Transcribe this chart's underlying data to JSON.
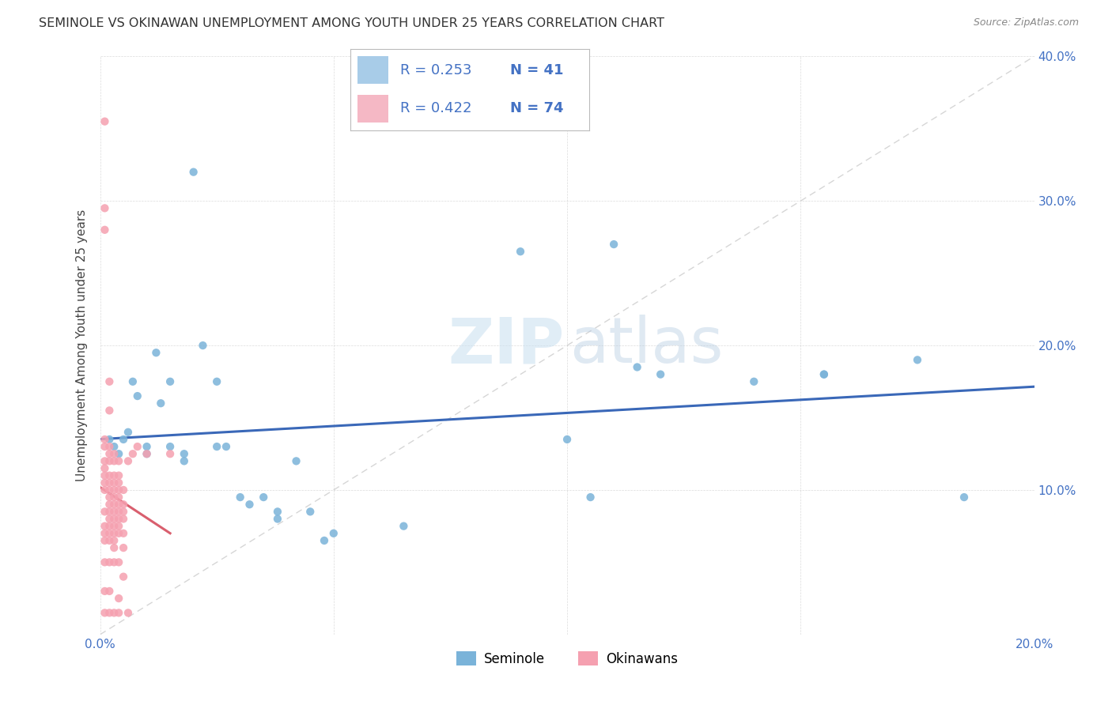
{
  "title": "SEMINOLE VS OKINAWAN UNEMPLOYMENT AMONG YOUTH UNDER 25 YEARS CORRELATION CHART",
  "source": "Source: ZipAtlas.com",
  "ylabel": "Unemployment Among Youth under 25 years",
  "xlim": [
    0.0,
    0.2
  ],
  "ylim": [
    0.0,
    0.4
  ],
  "seminole_color": "#7ab3d9",
  "okinawan_color": "#f5a0b0",
  "seminole_trend_color": "#3a68b8",
  "okinawan_trend_color": "#d95f6e",
  "diagonal_color": "#cccccc",
  "background_color": "#ffffff",
  "watermark_zip": "ZIP",
  "watermark_atlas": "atlas",
  "legend_box_sem_color": "#a8cce8",
  "legend_box_oki_color": "#f5b8c5",
  "seminole_data": [
    [
      0.002,
      0.135
    ],
    [
      0.003,
      0.13
    ],
    [
      0.004,
      0.125
    ],
    [
      0.005,
      0.135
    ],
    [
      0.006,
      0.14
    ],
    [
      0.007,
      0.175
    ],
    [
      0.008,
      0.165
    ],
    [
      0.01,
      0.13
    ],
    [
      0.01,
      0.125
    ],
    [
      0.012,
      0.195
    ],
    [
      0.013,
      0.16
    ],
    [
      0.015,
      0.175
    ],
    [
      0.015,
      0.13
    ],
    [
      0.018,
      0.12
    ],
    [
      0.018,
      0.125
    ],
    [
      0.02,
      0.32
    ],
    [
      0.022,
      0.2
    ],
    [
      0.025,
      0.13
    ],
    [
      0.025,
      0.175
    ],
    [
      0.027,
      0.13
    ],
    [
      0.03,
      0.095
    ],
    [
      0.032,
      0.09
    ],
    [
      0.035,
      0.095
    ],
    [
      0.038,
      0.085
    ],
    [
      0.038,
      0.08
    ],
    [
      0.042,
      0.12
    ],
    [
      0.045,
      0.085
    ],
    [
      0.048,
      0.065
    ],
    [
      0.05,
      0.07
    ],
    [
      0.065,
      0.075
    ],
    [
      0.09,
      0.265
    ],
    [
      0.1,
      0.135
    ],
    [
      0.105,
      0.095
    ],
    [
      0.11,
      0.27
    ],
    [
      0.115,
      0.185
    ],
    [
      0.12,
      0.18
    ],
    [
      0.14,
      0.175
    ],
    [
      0.155,
      0.18
    ],
    [
      0.155,
      0.18
    ],
    [
      0.175,
      0.19
    ],
    [
      0.185,
      0.095
    ]
  ],
  "okinawan_data": [
    [
      0.001,
      0.015
    ],
    [
      0.001,
      0.03
    ],
    [
      0.001,
      0.05
    ],
    [
      0.001,
      0.065
    ],
    [
      0.001,
      0.07
    ],
    [
      0.001,
      0.075
    ],
    [
      0.001,
      0.085
    ],
    [
      0.001,
      0.1
    ],
    [
      0.001,
      0.105
    ],
    [
      0.001,
      0.11
    ],
    [
      0.001,
      0.115
    ],
    [
      0.001,
      0.12
    ],
    [
      0.001,
      0.13
    ],
    [
      0.001,
      0.135
    ],
    [
      0.001,
      0.28
    ],
    [
      0.001,
      0.295
    ],
    [
      0.001,
      0.355
    ],
    [
      0.002,
      0.015
    ],
    [
      0.002,
      0.03
    ],
    [
      0.002,
      0.05
    ],
    [
      0.002,
      0.065
    ],
    [
      0.002,
      0.07
    ],
    [
      0.002,
      0.075
    ],
    [
      0.002,
      0.08
    ],
    [
      0.002,
      0.085
    ],
    [
      0.002,
      0.09
    ],
    [
      0.002,
      0.095
    ],
    [
      0.002,
      0.1
    ],
    [
      0.002,
      0.105
    ],
    [
      0.002,
      0.11
    ],
    [
      0.002,
      0.12
    ],
    [
      0.002,
      0.125
    ],
    [
      0.002,
      0.13
    ],
    [
      0.002,
      0.155
    ],
    [
      0.002,
      0.175
    ],
    [
      0.003,
      0.015
    ],
    [
      0.003,
      0.05
    ],
    [
      0.003,
      0.06
    ],
    [
      0.003,
      0.065
    ],
    [
      0.003,
      0.07
    ],
    [
      0.003,
      0.075
    ],
    [
      0.003,
      0.08
    ],
    [
      0.003,
      0.085
    ],
    [
      0.003,
      0.09
    ],
    [
      0.003,
      0.095
    ],
    [
      0.003,
      0.1
    ],
    [
      0.003,
      0.105
    ],
    [
      0.003,
      0.11
    ],
    [
      0.003,
      0.12
    ],
    [
      0.003,
      0.125
    ],
    [
      0.004,
      0.015
    ],
    [
      0.004,
      0.025
    ],
    [
      0.004,
      0.05
    ],
    [
      0.004,
      0.07
    ],
    [
      0.004,
      0.075
    ],
    [
      0.004,
      0.08
    ],
    [
      0.004,
      0.085
    ],
    [
      0.004,
      0.09
    ],
    [
      0.004,
      0.095
    ],
    [
      0.004,
      0.1
    ],
    [
      0.004,
      0.105
    ],
    [
      0.004,
      0.11
    ],
    [
      0.004,
      0.12
    ],
    [
      0.005,
      0.04
    ],
    [
      0.005,
      0.06
    ],
    [
      0.005,
      0.07
    ],
    [
      0.005,
      0.08
    ],
    [
      0.005,
      0.085
    ],
    [
      0.005,
      0.09
    ],
    [
      0.005,
      0.1
    ],
    [
      0.006,
      0.015
    ],
    [
      0.006,
      0.12
    ],
    [
      0.007,
      0.125
    ],
    [
      0.008,
      0.13
    ],
    [
      0.01,
      0.125
    ],
    [
      0.015,
      0.125
    ]
  ]
}
